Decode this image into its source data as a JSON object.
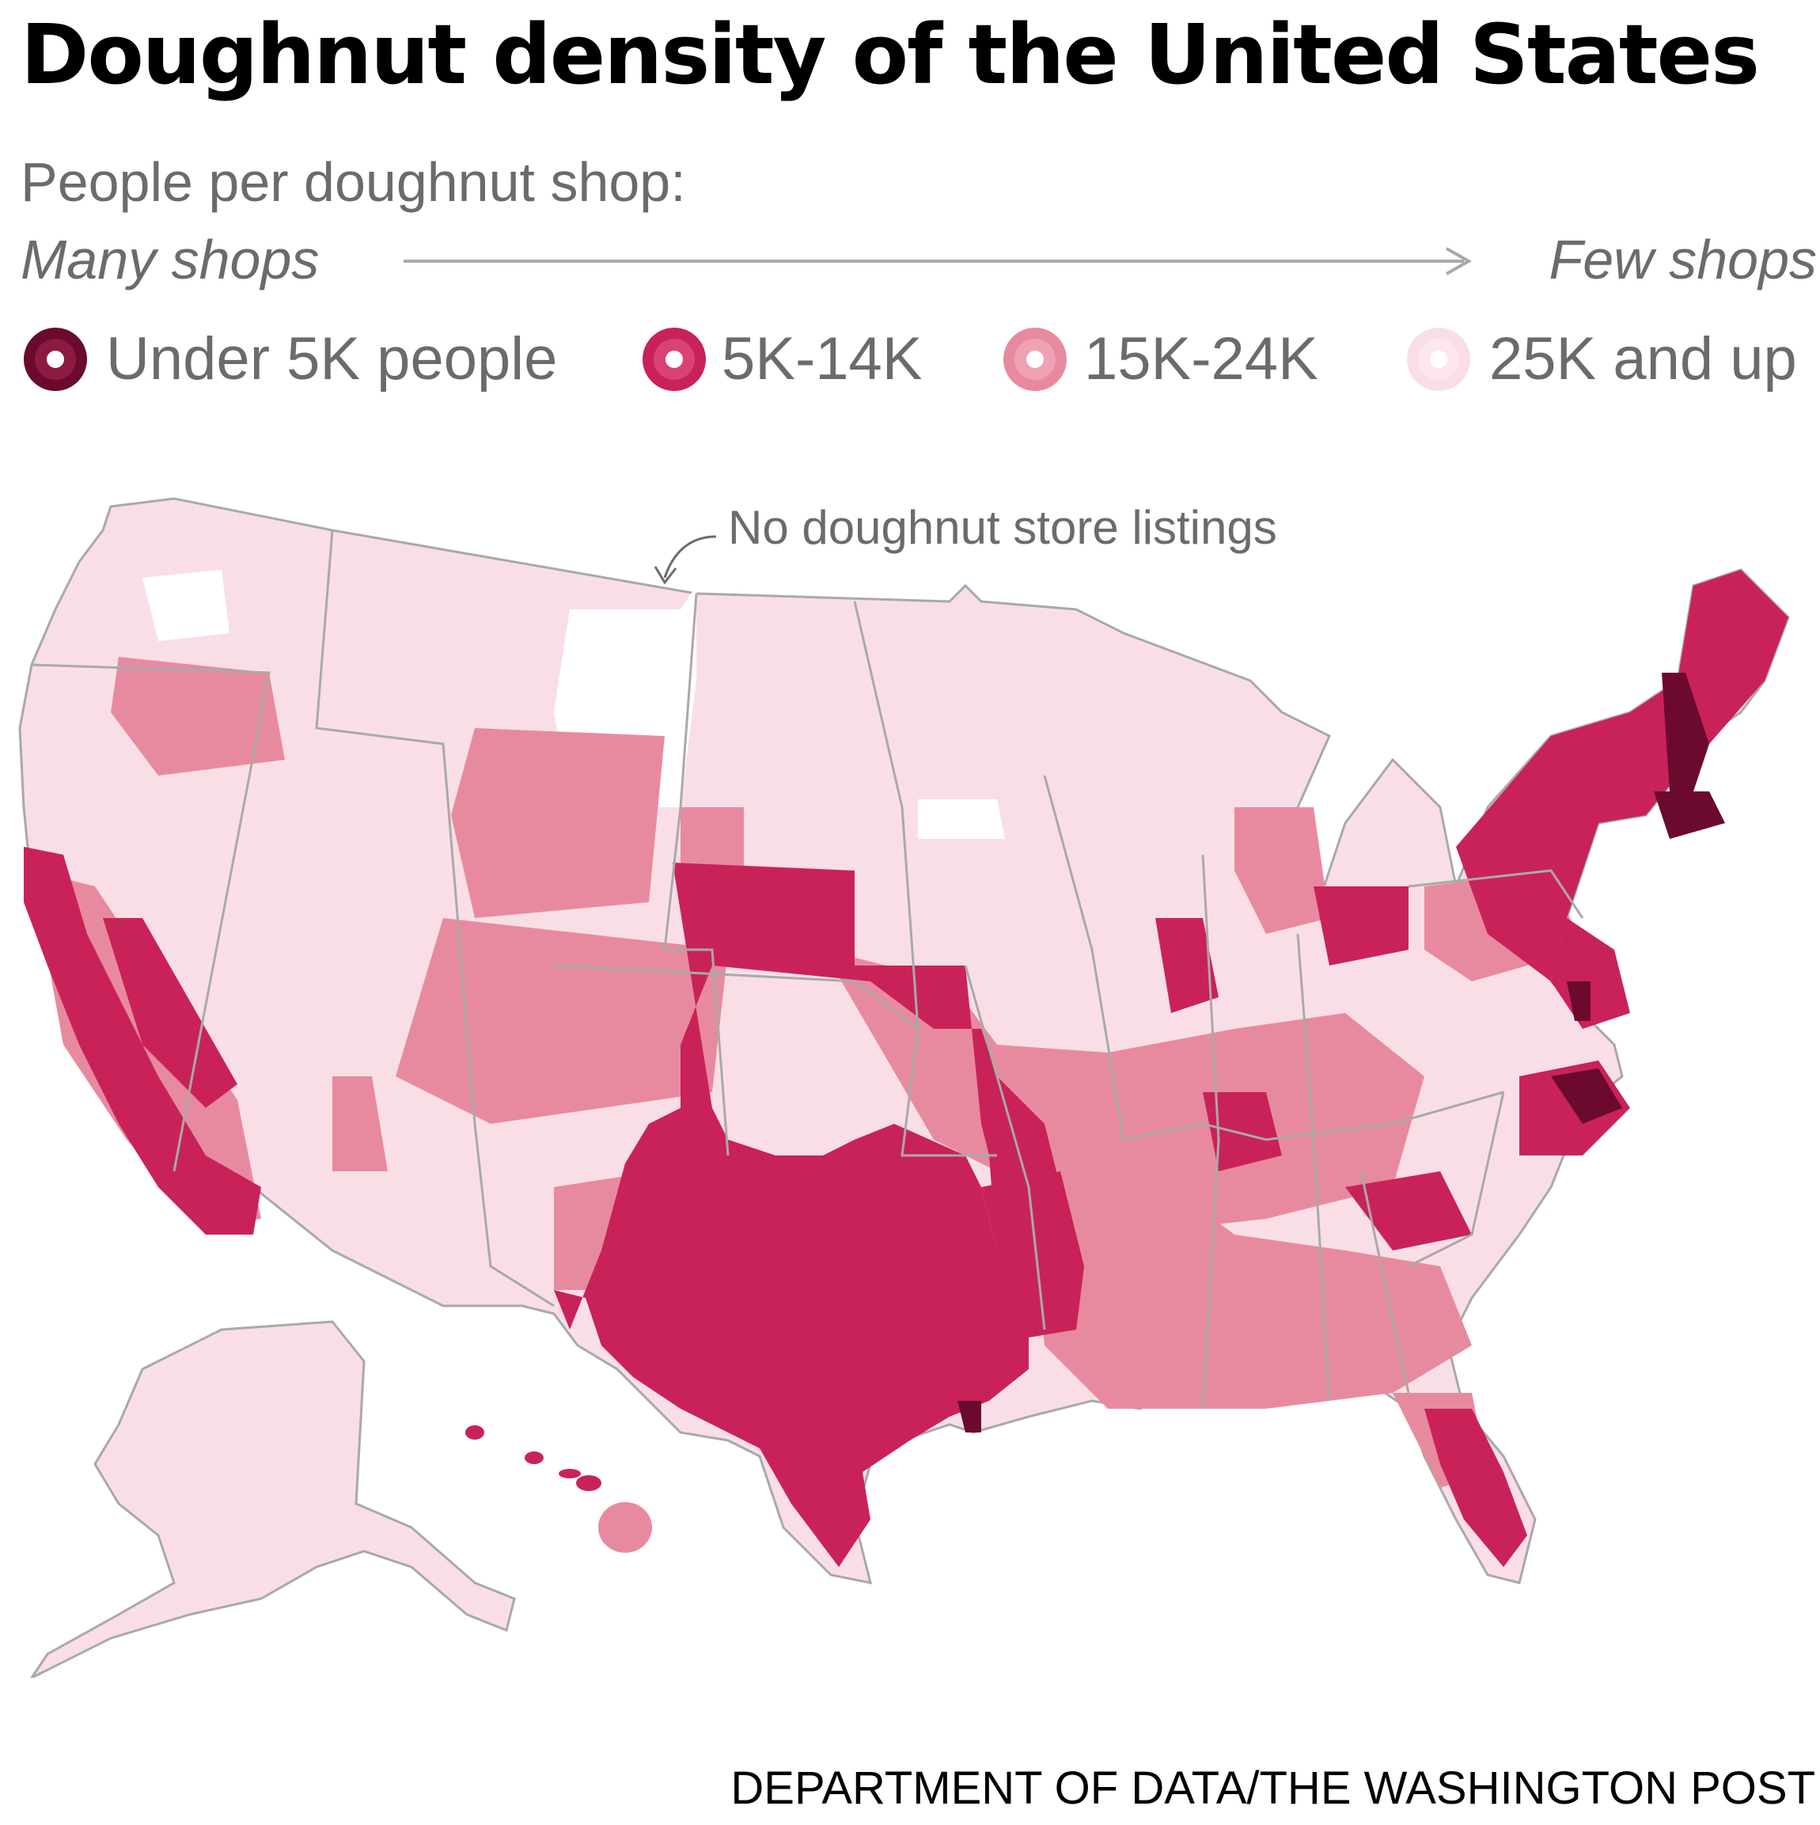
{
  "title": "Doughnut density of the United States",
  "subtitle": "People per doughnut shop:",
  "scale": {
    "low_label": "Many shops",
    "high_label": "Few shops"
  },
  "legend": [
    {
      "label": "Under 5K people",
      "color": "#6b0a2e",
      "inner": "#a3244f"
    },
    {
      "label": "5K-14K",
      "color": "#c92258",
      "inner": "#e35a85"
    },
    {
      "label": "15K-24K",
      "color": "#e88a9f",
      "inner": "#f3b3c2"
    },
    {
      "label": "25K and up",
      "color": "#f9dfe5",
      "inner": "#fcecf0"
    }
  ],
  "annotation": "No doughnut store listings",
  "source": "DEPARTMENT OF DATA/THE WASHINGTON POST",
  "colors": {
    "tier1": "#6b0a2e",
    "tier2": "#c92258",
    "tier3": "#e88a9f",
    "tier4": "#f9dfe5",
    "none": "#ffffff",
    "border": "#a9a9a9"
  }
}
